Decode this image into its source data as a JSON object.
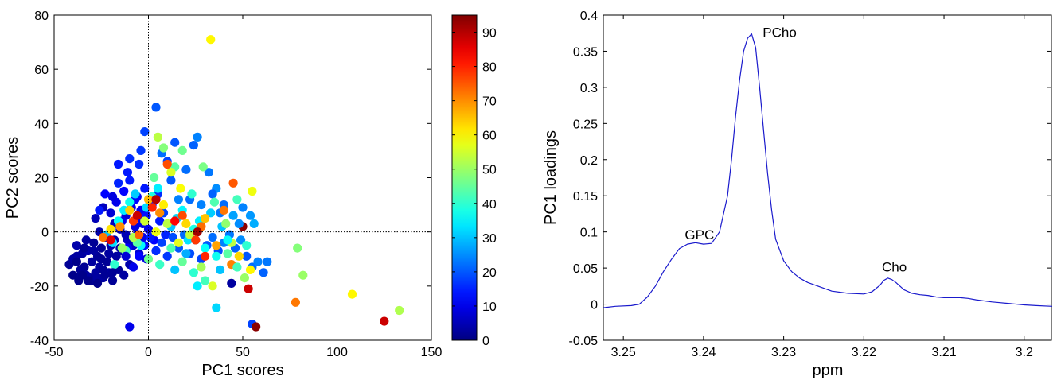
{
  "chart_data": [
    {
      "type": "scatter",
      "xlabel": "PC1 scores",
      "ylabel": "PC2 scores",
      "xlim": [
        -50,
        150
      ],
      "ylim": [
        -40,
        80
      ],
      "xticks": [
        -50,
        0,
        50,
        100,
        150
      ],
      "yticks": [
        -40,
        -20,
        0,
        20,
        40,
        60,
        80
      ],
      "reference_lines": {
        "x": 0,
        "y": 0,
        "style": "dotted"
      },
      "colorbar": {
        "colormap": "jet",
        "range": [
          0,
          95
        ],
        "ticks": [
          0,
          10,
          20,
          30,
          40,
          50,
          60,
          70,
          80,
          90
        ]
      },
      "points": [
        [
          -42,
          -12,
          2
        ],
        [
          -40,
          -10,
          3
        ],
        [
          -38,
          -5,
          4
        ],
        [
          -36,
          -16,
          2
        ],
        [
          -35,
          -8,
          3
        ],
        [
          -34,
          -13,
          2
        ],
        [
          -33,
          -3,
          3
        ],
        [
          -32,
          -7,
          4
        ],
        [
          -31,
          -17,
          2
        ],
        [
          -30,
          -11,
          3
        ],
        [
          -29,
          -4,
          2
        ],
        [
          -28,
          -15,
          3
        ],
        [
          -27,
          -9,
          2
        ],
        [
          -26,
          0,
          4
        ],
        [
          -26,
          -13,
          3
        ],
        [
          -25,
          -6,
          2
        ],
        [
          -24,
          -17,
          3
        ],
        [
          -23,
          -2,
          5
        ],
        [
          -22,
          -11,
          2
        ],
        [
          -21,
          -15,
          3
        ],
        [
          -20,
          -5,
          4
        ],
        [
          -19,
          -18,
          2
        ],
        [
          -18,
          3,
          6
        ],
        [
          -17,
          -9,
          3
        ],
        [
          -16,
          -14,
          2
        ],
        [
          -15,
          1,
          5
        ],
        [
          -14,
          -7,
          4
        ],
        [
          -13,
          -16,
          3
        ],
        [
          -12,
          6,
          8
        ],
        [
          -11,
          -3,
          6
        ],
        [
          -10,
          -12,
          4
        ],
        [
          -9,
          9,
          10
        ],
        [
          -8,
          -5,
          7
        ],
        [
          -7,
          2,
          9
        ],
        [
          -6,
          13,
          12
        ],
        [
          -5,
          -8,
          8
        ],
        [
          -4,
          5,
          11
        ],
        [
          -3,
          -2,
          10
        ],
        [
          -2,
          16,
          14
        ],
        [
          -1,
          -10,
          9
        ],
        [
          -36,
          -14,
          2
        ],
        [
          -33,
          -16,
          3
        ],
        [
          -30,
          -18,
          2
        ],
        [
          -27,
          -17,
          3
        ],
        [
          -24,
          -14,
          2
        ],
        [
          -38,
          -9,
          3
        ],
        [
          -34,
          -6,
          2
        ],
        [
          -29,
          -7,
          3
        ],
        [
          -25,
          -10,
          2
        ],
        [
          -21,
          -8,
          3
        ],
        [
          -18,
          -3,
          4
        ],
        [
          -15,
          -6,
          3
        ],
        [
          -12,
          -1,
          5
        ],
        [
          -9,
          -4,
          6
        ],
        [
          -6,
          -1,
          8
        ],
        [
          -3,
          3,
          9
        ],
        [
          0,
          1,
          10
        ],
        [
          3,
          -3,
          12
        ],
        [
          6,
          4,
          14
        ],
        [
          9,
          -1,
          15
        ],
        [
          -20,
          7,
          8
        ],
        [
          -17,
          11,
          10
        ],
        [
          -13,
          15,
          12
        ],
        [
          -10,
          19,
          14
        ],
        [
          -7,
          12,
          12
        ],
        [
          -4,
          8,
          11
        ],
        [
          -1,
          6,
          13
        ],
        [
          2,
          10,
          15
        ],
        [
          5,
          14,
          16
        ],
        [
          8,
          7,
          18
        ],
        [
          -28,
          5,
          5
        ],
        [
          -24,
          9,
          6
        ],
        [
          -19,
          13,
          9
        ],
        [
          -14,
          4,
          10
        ],
        [
          -11,
          -6,
          11
        ],
        [
          -8,
          -13,
          10
        ],
        [
          -5,
          -9,
          12
        ],
        [
          -2,
          -5,
          13
        ],
        [
          1,
          -2,
          14
        ],
        [
          4,
          -7,
          16
        ],
        [
          7,
          -4,
          18
        ],
        [
          10,
          -9,
          17
        ],
        [
          13,
          -2,
          19
        ],
        [
          16,
          -6,
          20
        ],
        [
          19,
          -1,
          22
        ],
        [
          22,
          -8,
          19
        ],
        [
          25,
          -3,
          21
        ],
        [
          28,
          -10,
          18
        ],
        [
          31,
          -5,
          20
        ],
        [
          34,
          -2,
          22
        ],
        [
          37,
          -7,
          19
        ],
        [
          40,
          -4,
          24
        ],
        [
          43,
          -1,
          23
        ],
        [
          46,
          -6,
          21
        ],
        [
          49,
          -3,
          25
        ],
        [
          52,
          -9,
          20
        ],
        [
          55,
          -13,
          22
        ],
        [
          58,
          -11,
          24
        ],
        [
          61,
          -15,
          21
        ],
        [
          63,
          -11,
          23
        ],
        [
          12,
          2,
          30
        ],
        [
          15,
          5,
          32
        ],
        [
          18,
          8,
          35
        ],
        [
          21,
          -3,
          33
        ],
        [
          24,
          1,
          38
        ],
        [
          27,
          4,
          34
        ],
        [
          30,
          -6,
          36
        ],
        [
          33,
          7,
          31
        ],
        [
          36,
          -9,
          37
        ],
        [
          39,
          2,
          30
        ],
        [
          -22,
          -1,
          30
        ],
        [
          -19,
          -4,
          33
        ],
        [
          -16,
          4,
          36
        ],
        [
          -13,
          8,
          34
        ],
        [
          -10,
          11,
          37
        ],
        [
          -7,
          14,
          31
        ],
        [
          -4,
          -5,
          35
        ],
        [
          -1,
          9,
          32
        ],
        [
          2,
          13,
          38
        ],
        [
          5,
          16,
          34
        ],
        [
          -18,
          -12,
          40
        ],
        [
          -12,
          -7,
          42
        ],
        [
          -6,
          -4,
          44
        ],
        [
          0,
          -10,
          46
        ],
        [
          6,
          -12,
          41
        ],
        [
          12,
          -6,
          43
        ],
        [
          18,
          -11,
          45
        ],
        [
          24,
          -15,
          40
        ],
        [
          30,
          -18,
          42
        ],
        [
          42,
          -8,
          44
        ],
        [
          -14,
          -6,
          50
        ],
        [
          -8,
          -2,
          52
        ],
        [
          -2,
          4,
          55
        ],
        [
          4,
          0,
          58
        ],
        [
          10,
          3,
          53
        ],
        [
          16,
          -4,
          57
        ],
        [
          22,
          -1,
          54
        ],
        [
          28,
          -13,
          51
        ],
        [
          34,
          -20,
          56
        ],
        [
          44,
          -4,
          53
        ],
        [
          -20,
          1,
          62
        ],
        [
          -10,
          8,
          64
        ],
        [
          0,
          12,
          66
        ],
        [
          8,
          10,
          61
        ],
        [
          20,
          3,
          63
        ],
        [
          30,
          5,
          65
        ],
        [
          36,
          -5,
          68
        ],
        [
          48,
          -9,
          63
        ],
        [
          54,
          -14,
          60
        ],
        [
          -24,
          -2,
          72
        ],
        [
          -5,
          -1,
          74
        ],
        [
          6,
          7,
          70
        ],
        [
          18,
          6,
          76
        ],
        [
          28,
          2,
          73
        ],
        [
          44,
          -12,
          71
        ],
        [
          -8,
          4,
          78
        ],
        [
          2,
          9,
          80
        ],
        [
          14,
          4,
          83
        ],
        [
          -20,
          -3,
          86
        ],
        [
          -6,
          6,
          88
        ],
        [
          4,
          12,
          90
        ],
        [
          26,
          0,
          92
        ],
        [
          50,
          2,
          94
        ],
        [
          -26,
          8,
          14
        ],
        [
          -23,
          14,
          12
        ],
        [
          -16,
          18,
          15
        ],
        [
          -11,
          22,
          14
        ],
        [
          -5,
          25,
          16
        ],
        [
          -2,
          37,
          18
        ],
        [
          4,
          46,
          20
        ],
        [
          7,
          29,
          22
        ],
        [
          12,
          19,
          20
        ],
        [
          16,
          12,
          24
        ],
        [
          20,
          23,
          22
        ],
        [
          24,
          32,
          21
        ],
        [
          26,
          35,
          24
        ],
        [
          32,
          22,
          23
        ],
        [
          36,
          16,
          25
        ],
        [
          40,
          10,
          22
        ],
        [
          45,
          6,
          27
        ],
        [
          50,
          9,
          24
        ],
        [
          54,
          6,
          26
        ],
        [
          56,
          3,
          28
        ],
        [
          -16,
          25,
          14
        ],
        [
          -10,
          27,
          16
        ],
        [
          -4,
          30,
          17
        ],
        [
          10,
          26,
          18
        ],
        [
          14,
          33,
          20
        ],
        [
          22,
          12,
          22
        ],
        [
          28,
          10,
          24
        ],
        [
          34,
          14,
          21
        ],
        [
          38,
          7,
          23
        ],
        [
          48,
          3,
          25
        ],
        [
          3,
          20,
          45
        ],
        [
          8,
          31,
          48
        ],
        [
          14,
          24,
          44
        ],
        [
          18,
          30,
          46
        ],
        [
          23,
          14,
          40
        ],
        [
          29,
          24,
          47
        ],
        [
          35,
          11,
          43
        ],
        [
          41,
          3,
          49
        ],
        [
          47,
          12,
          42
        ],
        [
          33,
          71,
          60
        ],
        [
          55,
          15,
          58
        ],
        [
          5,
          35,
          53
        ],
        [
          12,
          22,
          56
        ],
        [
          17,
          16,
          59
        ],
        [
          45,
          18,
          75
        ],
        [
          40,
          8,
          72
        ],
        [
          25,
          -3,
          78
        ],
        [
          30,
          -9,
          80
        ],
        [
          -15,
          2,
          70
        ],
        [
          10,
          25,
          76
        ],
        [
          -10,
          -35,
          10
        ],
        [
          -12,
          -9,
          8
        ],
        [
          -35,
          -16,
          1
        ],
        [
          -38,
          -11,
          1
        ],
        [
          -40,
          -16,
          1
        ],
        [
          -37,
          -18,
          1
        ],
        [
          -32,
          -18,
          1
        ],
        [
          -27,
          -19,
          1
        ],
        [
          -23,
          -16,
          2
        ],
        [
          -19,
          -15,
          2
        ],
        [
          51,
          -17,
          50
        ],
        [
          53,
          -21,
          88
        ],
        [
          55,
          -34,
          18
        ],
        [
          57,
          -35,
          94
        ],
        [
          79,
          -6,
          48
        ],
        [
          82,
          -16,
          50
        ],
        [
          78,
          -26,
          72
        ],
        [
          108,
          -23,
          60
        ],
        [
          125,
          -33,
          88
        ],
        [
          133,
          -29,
          52
        ],
        [
          44,
          -19,
          3
        ],
        [
          47,
          -13,
          42
        ],
        [
          52,
          -5,
          40
        ],
        [
          42,
          -3,
          36
        ],
        [
          36,
          -28,
          32
        ],
        [
          38,
          -14,
          30
        ],
        [
          26,
          -20,
          34
        ],
        [
          20,
          -8,
          28
        ],
        [
          14,
          -14,
          30
        ]
      ]
    },
    {
      "type": "line",
      "xlabel": "ppm",
      "ylabel": "PC1 loadings",
      "xlim": [
        3.2525,
        3.1965
      ],
      "x_reversed": true,
      "ylim": [
        -0.05,
        0.4
      ],
      "xticks": [
        3.25,
        3.24,
        3.23,
        3.22,
        3.21,
        3.2
      ],
      "xtick_labels": [
        "3.25",
        "3.24",
        "3.23",
        "3.22",
        "3.21",
        "3.2"
      ],
      "yticks": [
        -0.05,
        0,
        0.05,
        0.1,
        0.15,
        0.2,
        0.25,
        0.3,
        0.35,
        0.4
      ],
      "ytick_labels": [
        "-0.05",
        "0",
        "0.05",
        "0.1",
        "0.15",
        "0.2",
        "0.25",
        "0.3",
        "0.35",
        "0.4"
      ],
      "reference_lines": {
        "y": 0,
        "style": "dotted"
      },
      "series": [
        {
          "color": "#1a1acc",
          "x": [
            3.2525,
            3.251,
            3.249,
            3.248,
            3.247,
            3.246,
            3.245,
            3.244,
            3.243,
            3.242,
            3.241,
            3.24,
            3.239,
            3.238,
            3.237,
            3.2365,
            3.236,
            3.2355,
            3.235,
            3.2345,
            3.234,
            3.2335,
            3.233,
            3.2325,
            3.232,
            3.2315,
            3.231,
            3.23,
            3.229,
            3.228,
            3.227,
            3.226,
            3.225,
            3.224,
            3.222,
            3.22,
            3.219,
            3.218,
            3.2175,
            3.217,
            3.2165,
            3.216,
            3.215,
            3.214,
            3.213,
            3.212,
            3.211,
            3.21,
            3.209,
            3.208,
            3.207,
            3.206,
            3.204,
            3.202,
            3.2,
            3.1985,
            3.1965
          ],
          "y": [
            -0.005,
            -0.003,
            -0.002,
            0.0,
            0.01,
            0.025,
            0.045,
            0.062,
            0.077,
            0.083,
            0.085,
            0.083,
            0.084,
            0.1,
            0.15,
            0.2,
            0.26,
            0.31,
            0.35,
            0.368,
            0.374,
            0.355,
            0.3,
            0.24,
            0.18,
            0.13,
            0.09,
            0.06,
            0.045,
            0.036,
            0.03,
            0.026,
            0.022,
            0.018,
            0.015,
            0.014,
            0.017,
            0.026,
            0.033,
            0.036,
            0.034,
            0.03,
            0.02,
            0.015,
            0.013,
            0.012,
            0.01,
            0.009,
            0.009,
            0.009,
            0.008,
            0.006,
            0.003,
            0.001,
            -0.001,
            -0.002,
            -0.003
          ]
        }
      ],
      "annotations": [
        {
          "text": "GPC",
          "x": 3.2405,
          "y": 0.09
        },
        {
          "text": "PCho",
          "x": 3.2305,
          "y": 0.37
        },
        {
          "text": "Cho",
          "x": 3.2162,
          "y": 0.045
        }
      ]
    }
  ]
}
